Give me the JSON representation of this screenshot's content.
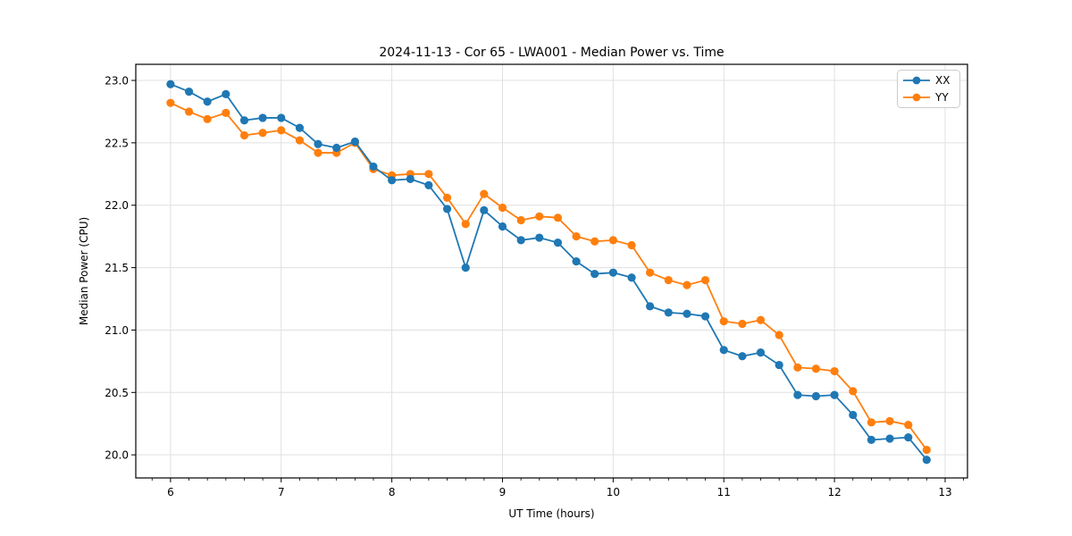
{
  "chart_data": {
    "type": "line",
    "title": "2024-11-13 - Cor 65 - LWA001 - Median Power vs. Time",
    "xlabel": "UT Time (hours)",
    "ylabel": "Median Power (CPU)",
    "xlim": [
      5.686,
      13.202
    ],
    "ylim": [
      19.815,
      23.129
    ],
    "xticks": [
      "6",
      "7",
      "8",
      "9",
      "10",
      "11",
      "12",
      "13"
    ],
    "yticks": [
      "20.0",
      "20.5",
      "21.0",
      "21.5",
      "22.0",
      "22.5",
      "23.0"
    ],
    "x_minor_tick_step_hours": 0.1667,
    "grid": true,
    "legend_position": "top-right",
    "x": [
      6.0,
      6.167,
      6.333,
      6.5,
      6.667,
      6.833,
      7.0,
      7.167,
      7.333,
      7.5,
      7.667,
      7.833,
      8.0,
      8.167,
      8.333,
      8.5,
      8.667,
      8.833,
      9.0,
      9.167,
      9.333,
      9.5,
      9.667,
      9.833,
      10.0,
      10.167,
      10.333,
      10.5,
      10.667,
      10.833,
      11.0,
      11.167,
      11.333,
      11.5,
      11.667,
      11.833,
      12.0,
      12.167,
      12.333,
      12.5,
      12.667,
      12.833
    ],
    "series": [
      {
        "name": "XX",
        "color": "#1f77b4",
        "marker": "circle",
        "values": [
          22.97,
          22.91,
          22.83,
          22.89,
          22.68,
          22.7,
          22.7,
          22.62,
          22.49,
          22.46,
          22.51,
          22.31,
          22.2,
          22.21,
          22.16,
          21.97,
          21.5,
          21.96,
          21.83,
          21.72,
          21.74,
          21.7,
          21.55,
          21.45,
          21.46,
          21.42,
          21.19,
          21.14,
          21.13,
          21.11,
          20.84,
          20.79,
          20.82,
          20.72,
          20.48,
          20.47,
          20.48,
          20.32,
          20.12,
          20.13,
          20.14,
          19.96
        ]
      },
      {
        "name": "YY",
        "color": "#ff7f0e",
        "marker": "circle",
        "values": [
          22.82,
          22.75,
          22.69,
          22.74,
          22.56,
          22.58,
          22.6,
          22.52,
          22.42,
          22.42,
          22.5,
          22.29,
          22.24,
          22.25,
          22.25,
          22.06,
          21.85,
          22.09,
          21.98,
          21.88,
          21.91,
          21.9,
          21.75,
          21.71,
          21.72,
          21.68,
          21.46,
          21.4,
          21.36,
          21.4,
          21.07,
          21.05,
          21.08,
          20.96,
          20.7,
          20.69,
          20.67,
          20.51,
          20.26,
          20.27,
          20.24,
          20.04
        ]
      }
    ]
  }
}
